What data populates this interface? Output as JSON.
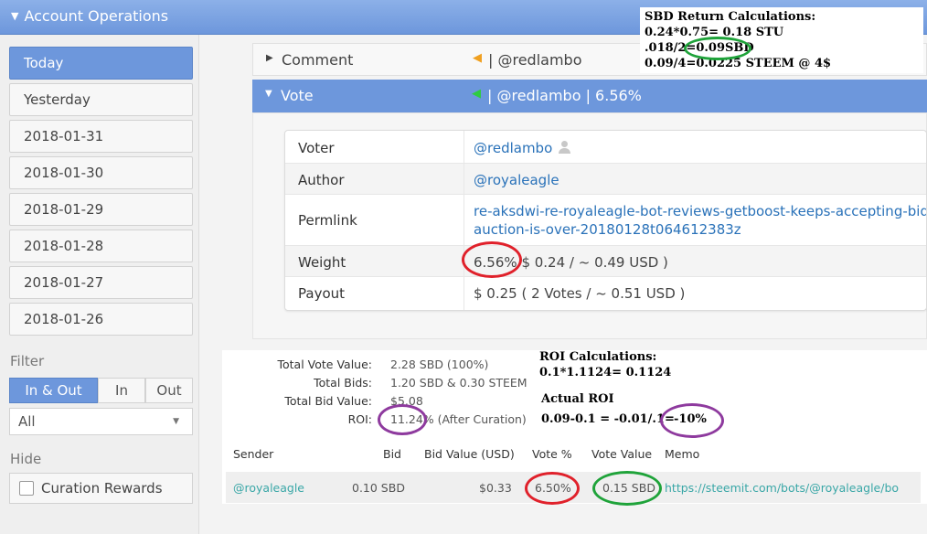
{
  "header": {
    "title": "Account Operations"
  },
  "sidebar": {
    "dates": [
      "Today",
      "Yesterday",
      "2018-01-31",
      "2018-01-30",
      "2018-01-29",
      "2018-01-28",
      "2018-01-27",
      "2018-01-26"
    ],
    "filter_label": "Filter",
    "filter_options": [
      "In & Out",
      "In",
      "Out"
    ],
    "select_value": "All",
    "hide_label": "Hide",
    "curation_label": "Curation Rewards"
  },
  "ops": {
    "comment": {
      "name": "Comment",
      "summary": "| @redlambo"
    },
    "vote": {
      "name": "Vote",
      "summary": "| @redlambo | 6.56%"
    }
  },
  "vote_detail": {
    "voter_label": "Voter",
    "voter": "@redlambo",
    "author_label": "Author",
    "author": "@royaleagle",
    "permlink_label": "Permlink",
    "permlink_line1": "re-aksdwi-re-royaleagle-bot-reviews-getboost-keeps-accepting-bids",
    "permlink_line2": "auction-is-over-20180128t064612383z",
    "weight_label": "Weight",
    "weight_pct": "6.56%",
    "weight_rest": "$ 0.24 / ~ 0.49 USD )",
    "payout_label": "Payout",
    "payout": "$ 0.25 ( 2 Votes / ~ 0.51 USD )"
  },
  "bid_stats": {
    "total_vote_value_label": "Total Vote Value:",
    "total_vote_value": "2.28 SBD (100%)",
    "total_bids_label": "Total Bids:",
    "total_bids": "1.20 SBD & 0.30 STEEM",
    "total_bid_value_label": "Total Bid Value:",
    "total_bid_value": "$5.08",
    "roi_label": "ROI:",
    "roi_value": "11.24%",
    "roi_note": "(After Curation)"
  },
  "bid_table": {
    "headers": [
      "Sender",
      "Bid",
      "Bid Value (USD)",
      "Vote %",
      "Vote Value",
      "Memo"
    ],
    "row": {
      "sender": "@royaleagle",
      "bid": "0.10 SBD",
      "bid_value": "$0.33",
      "vote_pct": "6.50%",
      "vote_value": "0.15 SBD",
      "memo": "https://steemit.com/bots/@royaleagle/bo"
    }
  },
  "annotations": {
    "sbd_title": "SBD Return Calculations:",
    "sbd_line1": "0.24*0.75= 0.18 STU",
    "sbd_line2": ".018/2=0.09SBD",
    "sbd_line3": "0.09/4=0.0225 STEEM @ 4$",
    "roi_title": "ROI Calculations:",
    "roi_line1": "0.1*1.1124= 0.1124",
    "actual_title": "Actual ROI",
    "actual_line": "0.09-0.1 = -0.01/.1=",
    "actual_result": "-10%"
  },
  "colors": {
    "accent": "#6d97dc",
    "link": "#2a72b9",
    "teal_link": "#3aa7a7",
    "ring_red": "#e0212b",
    "ring_green": "#1fa33a",
    "ring_purple": "#8e3a9e"
  }
}
